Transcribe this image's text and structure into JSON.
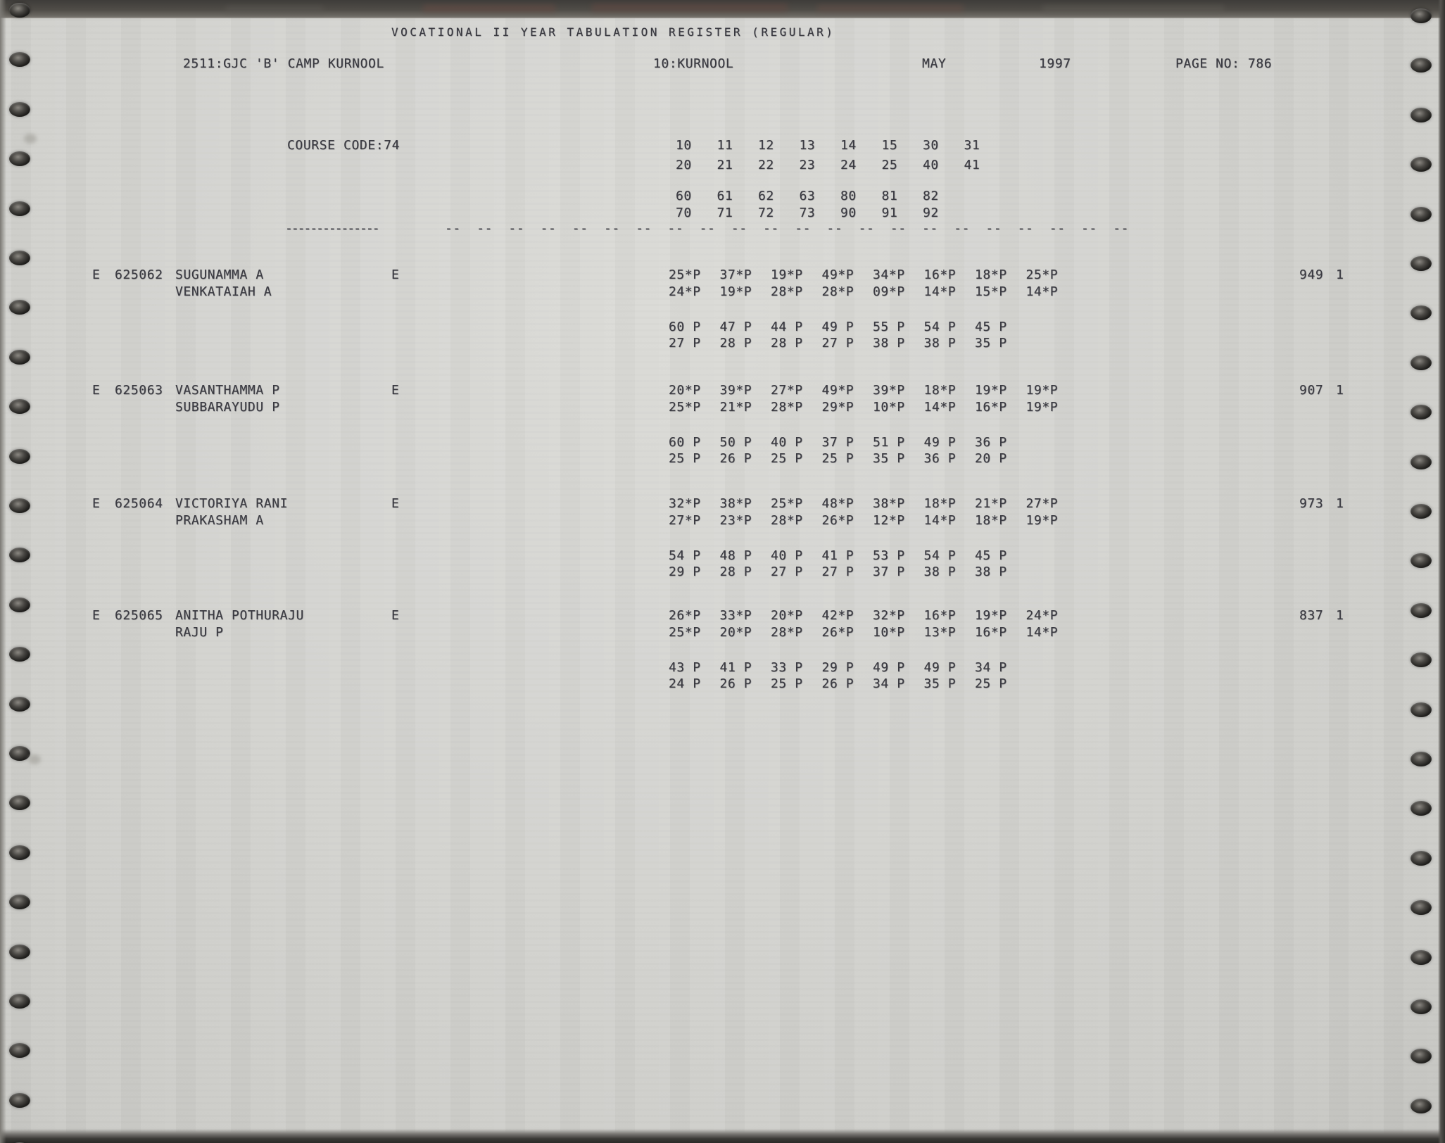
{
  "colors": {
    "paper": "#d4d4d0",
    "ink": "#3a3a41",
    "edge_dark": "#2b2a27"
  },
  "page": {
    "title": "VOCATIONAL II YEAR TABULATION REGISTER (REGULAR)",
    "college": "2511:GJC 'B' CAMP KURNOOL",
    "district": "10:KURNOOL",
    "month": "MAY",
    "year": "1997",
    "page_label": "PAGE NO: 786"
  },
  "course": {
    "label": "COURSE CODE:74",
    "subject_code_rows": [
      [
        "10",
        "11",
        "12",
        "13",
        "14",
        "15",
        "30",
        "31"
      ],
      [
        "20",
        "21",
        "22",
        "23",
        "24",
        "25",
        "40",
        "41"
      ],
      [
        "60",
        "61",
        "62",
        "63",
        "80",
        "81",
        "82"
      ],
      [
        "70",
        "71",
        "72",
        "73",
        "90",
        "91",
        "92"
      ]
    ]
  },
  "separator": {
    "long_dash": "---------------",
    "pair": "--",
    "pair_count": 22
  },
  "students": [
    {
      "medium_flag": "E",
      "regno": "625062",
      "name": "SUGUNAMMA A",
      "father_name": "VENKATAIAH A",
      "lang_flag": "E",
      "marks_rows": [
        [
          "25*P",
          "37*P",
          "19*P",
          "49*P",
          "34*P",
          "16*P",
          "18*P",
          "25*P"
        ],
        [
          "24*P",
          "19*P",
          "28*P",
          "28*P",
          "09*P",
          "14*P",
          "15*P",
          "14*P"
        ],
        [
          "60 P",
          "47 P",
          "44 P",
          "49 P",
          "55 P",
          "54 P",
          "45 P"
        ],
        [
          "27 P",
          "28 P",
          "28 P",
          "27 P",
          "38 P",
          "38 P",
          "35 P"
        ]
      ],
      "total": "949",
      "result_flag": "1"
    },
    {
      "medium_flag": "E",
      "regno": "625063",
      "name": "VASANTHAMMA P",
      "father_name": "SUBBARAYUDU P",
      "lang_flag": "E",
      "marks_rows": [
        [
          "20*P",
          "39*P",
          "27*P",
          "49*P",
          "39*P",
          "18*P",
          "19*P",
          "19*P"
        ],
        [
          "25*P",
          "21*P",
          "28*P",
          "29*P",
          "10*P",
          "14*P",
          "16*P",
          "19*P"
        ],
        [
          "60 P",
          "50 P",
          "40 P",
          "37 P",
          "51 P",
          "49 P",
          "36 P"
        ],
        [
          "25 P",
          "26 P",
          "25 P",
          "25 P",
          "35 P",
          "36 P",
          "20 P"
        ]
      ],
      "total": "907",
      "result_flag": "1"
    },
    {
      "medium_flag": "E",
      "regno": "625064",
      "name": "VICTORIYA RANI",
      "father_name": "PRAKASHAM A",
      "lang_flag": "E",
      "marks_rows": [
        [
          "32*P",
          "38*P",
          "25*P",
          "48*P",
          "38*P",
          "18*P",
          "21*P",
          "27*P"
        ],
        [
          "27*P",
          "23*P",
          "28*P",
          "26*P",
          "12*P",
          "14*P",
          "18*P",
          "19*P"
        ],
        [
          "54 P",
          "48 P",
          "40 P",
          "41 P",
          "53 P",
          "54 P",
          "45 P"
        ],
        [
          "29 P",
          "28 P",
          "27 P",
          "27 P",
          "37 P",
          "38 P",
          "38 P"
        ]
      ],
      "total": "973",
      "result_flag": "1"
    },
    {
      "medium_flag": "E",
      "regno": "625065",
      "name": "ANITHA POTHURAJU",
      "father_name": "RAJU P",
      "lang_flag": "E",
      "marks_rows": [
        [
          "26*P",
          "33*P",
          "20*P",
          "42*P",
          "32*P",
          "16*P",
          "19*P",
          "24*P"
        ],
        [
          "25*P",
          "20*P",
          "28*P",
          "26*P",
          "10*P",
          "13*P",
          "16*P",
          "14*P"
        ],
        [
          "43 P",
          "41 P",
          "33 P",
          "29 P",
          "49 P",
          "49 P",
          "34 P"
        ],
        [
          "24 P",
          "26 P",
          "25 P",
          "26 P",
          "34 P",
          "35 P",
          "25 P"
        ]
      ],
      "total": "837",
      "result_flag": "1"
    }
  ]
}
